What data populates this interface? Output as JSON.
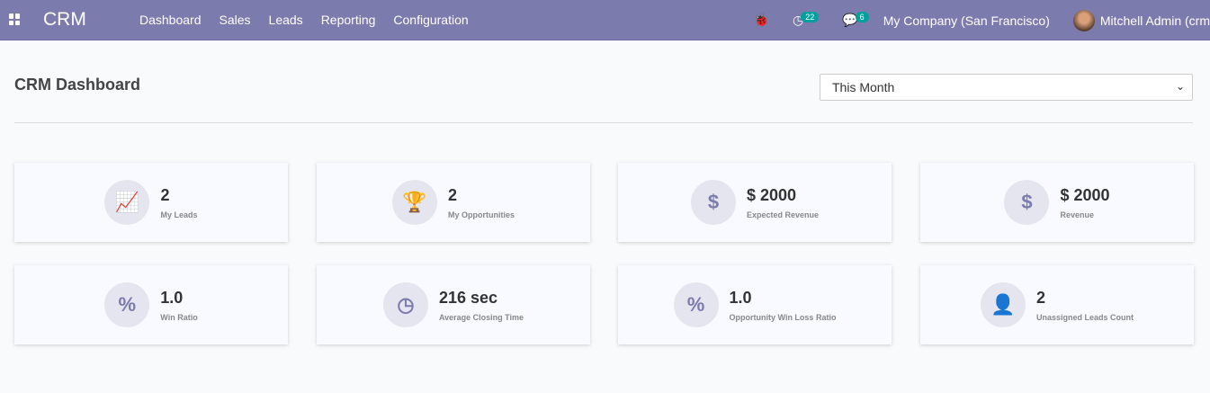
{
  "navbar": {
    "brand": "CRM",
    "menu": [
      "Dashboard",
      "Sales",
      "Leads",
      "Reporting",
      "Configuration"
    ],
    "activity_count": "22",
    "message_count": "6",
    "company": "My Company (San Francisco)",
    "user": "Mitchell Admin (crm"
  },
  "page": {
    "title": "CRM Dashboard",
    "period_filter": "This Month"
  },
  "cards": [
    {
      "icon": "chart-line-icon",
      "glyph": "📈",
      "value": "2",
      "label": "My Leads"
    },
    {
      "icon": "trophy-icon",
      "glyph": "🏆",
      "value": "2",
      "label": "My Opportunities"
    },
    {
      "icon": "dollar-icon",
      "glyph": "$",
      "value": "$ 2000",
      "label": "Expected Revenue"
    },
    {
      "icon": "dollar-icon",
      "glyph": "$",
      "value": "$ 2000",
      "label": "Revenue"
    },
    {
      "icon": "percent-icon",
      "glyph": "%",
      "value": "1.0",
      "label": "Win Ratio"
    },
    {
      "icon": "clock-icon",
      "glyph": "◷",
      "value": "216 sec",
      "label": "Average Closing Time"
    },
    {
      "icon": "percent-icon",
      "glyph": "%",
      "value": "1.0",
      "label": "Opportunity Win Loss Ratio"
    },
    {
      "icon": "user-times-icon",
      "glyph": "👤",
      "value": "2",
      "label": "Unassigned Leads Count"
    }
  ]
}
